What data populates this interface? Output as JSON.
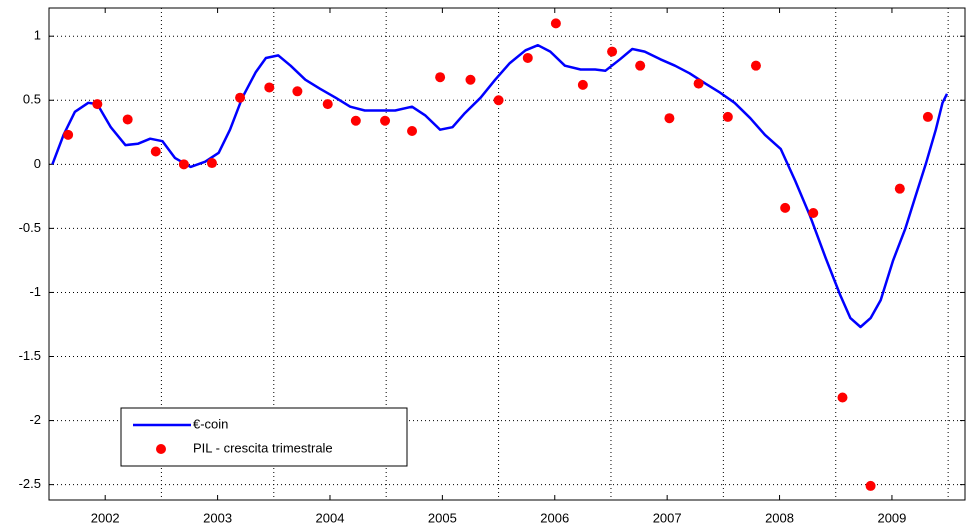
{
  "chart_data": {
    "type": "line",
    "xlim": [
      2002,
      2010.15
    ],
    "ylim": [
      -2.62,
      1.22
    ],
    "xticks": [
      {
        "value": 2002.5,
        "label": "2002"
      },
      {
        "value": 2003.5,
        "label": "2003"
      },
      {
        "value": 2004.5,
        "label": "2004"
      },
      {
        "value": 2005.5,
        "label": "2005"
      },
      {
        "value": 2006.5,
        "label": "2006"
      },
      {
        "value": 2007.5,
        "label": "2007"
      },
      {
        "value": 2008.5,
        "label": "2008"
      },
      {
        "value": 2009.5,
        "label": "2009"
      }
    ],
    "xgrid": [
      2003,
      2004,
      2005,
      2006,
      2007,
      2008,
      2009,
      2010
    ],
    "yticks": [
      1,
      0.5,
      0,
      -0.5,
      -1,
      -1.5,
      -2,
      -2.5
    ],
    "grid": true,
    "legend": "lower left",
    "series": [
      {
        "name": "€-coin",
        "type": "line",
        "color": "#0000ff",
        "x": [
          2002.03,
          2002.13,
          2002.23,
          2002.35,
          2002.43,
          2002.55,
          2002.68,
          2002.79,
          2002.9,
          2003.01,
          2003.12,
          2003.26,
          2003.39,
          2003.51,
          2003.61,
          2003.72,
          2003.84,
          2003.93,
          2004.04,
          2004.15,
          2004.28,
          2004.41,
          2004.55,
          2004.68,
          2004.81,
          2004.95,
          2005.08,
          2005.23,
          2005.35,
          2005.48,
          2005.59,
          2005.7,
          2005.84,
          2005.97,
          2006.1,
          2006.24,
          2006.35,
          2006.46,
          2006.59,
          2006.73,
          2006.86,
          2006.95,
          2007.08,
          2007.19,
          2007.3,
          2007.44,
          2007.57,
          2007.7,
          2007.84,
          2007.97,
          2008.1,
          2008.24,
          2008.37,
          2008.51,
          2008.64,
          2008.77,
          2008.91,
          2009.04,
          2009.13,
          2009.22,
          2009.31,
          2009.4,
          2009.51,
          2009.62,
          2009.71,
          2009.8,
          2009.89,
          2009.95,
          2009.99
        ],
        "values": [
          0,
          0.23,
          0.41,
          0.48,
          0.47,
          0.29,
          0.15,
          0.16,
          0.2,
          0.18,
          0.05,
          -0.02,
          0.02,
          0.09,
          0.27,
          0.52,
          0.72,
          0.83,
          0.85,
          0.77,
          0.66,
          0.59,
          0.52,
          0.45,
          0.42,
          0.42,
          0.42,
          0.45,
          0.38,
          0.27,
          0.29,
          0.4,
          0.52,
          0.66,
          0.79,
          0.89,
          0.93,
          0.88,
          0.77,
          0.74,
          0.74,
          0.73,
          0.82,
          0.9,
          0.88,
          0.82,
          0.77,
          0.71,
          0.63,
          0.56,
          0.48,
          0.36,
          0.23,
          0.12,
          -0.13,
          -0.4,
          -0.73,
          -1.02,
          -1.2,
          -1.27,
          -1.2,
          -1.06,
          -0.75,
          -0.5,
          -0.25,
          0,
          0.27,
          0.48,
          0.55
        ]
      },
      {
        "name": "PIL - crescita trimestrale",
        "type": "scatter",
        "color": "#ff0000",
        "x": [
          2002.17,
          2002.43,
          2002.7,
          2002.95,
          2003.2,
          2003.45,
          2003.7,
          2003.96,
          2004.21,
          2004.48,
          2004.73,
          2004.99,
          2005.23,
          2005.48,
          2005.75,
          2006.0,
          2006.26,
          2006.51,
          2006.75,
          2007.01,
          2007.26,
          2007.52,
          2007.78,
          2008.04,
          2008.29,
          2008.55,
          2008.8,
          2009.06,
          2009.31,
          2009.57,
          2009.82
        ],
        "values": [
          0.23,
          0.47,
          0.35,
          0.1,
          0.0,
          0.01,
          0.52,
          0.6,
          0.57,
          0.47,
          0.34,
          0.34,
          0.26,
          0.68,
          0.66,
          0.5,
          0.83,
          1.1,
          0.62,
          0.88,
          0.77,
          0.36,
          0.63,
          0.37,
          0.77,
          -0.34,
          -0.38,
          -1.82,
          -2.51,
          -0.19,
          0.37
        ]
      }
    ]
  }
}
